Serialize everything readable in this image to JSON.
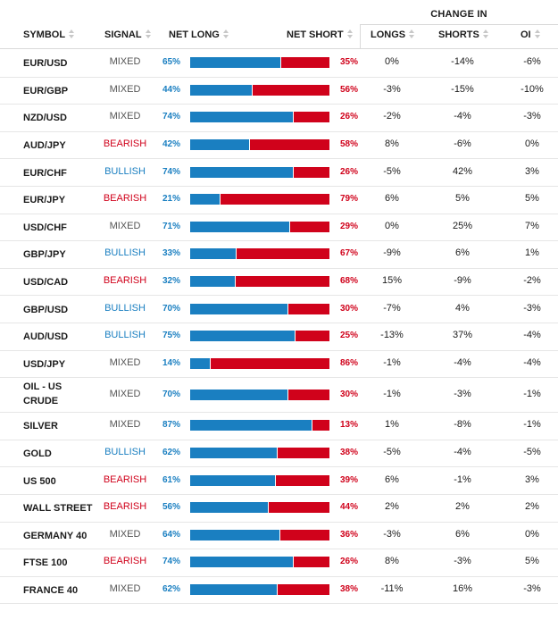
{
  "headers": {
    "change_in": "CHANGE IN",
    "symbol": "SYMBOL",
    "signal": "SIGNAL",
    "net_long": "NET LONG",
    "net_short": "NET SHORT",
    "longs": "LONGS",
    "shorts": "SHORTS",
    "oi": "OI"
  },
  "colors": {
    "long": "#1a7fc1",
    "short": "#d0021b",
    "mixed": "#555555"
  },
  "rows": [
    {
      "symbol": "EUR/USD",
      "signal": "MIXED",
      "long": "65%",
      "short": "35%",
      "longs": "0%",
      "shorts": "-14%",
      "oi": "-6%"
    },
    {
      "symbol": "EUR/GBP",
      "signal": "MIXED",
      "long": "44%",
      "short": "56%",
      "longs": "-3%",
      "shorts": "-15%",
      "oi": "-10%"
    },
    {
      "symbol": "NZD/USD",
      "signal": "MIXED",
      "long": "74%",
      "short": "26%",
      "longs": "-2%",
      "shorts": "-4%",
      "oi": "-3%"
    },
    {
      "symbol": "AUD/JPY",
      "signal": "BEARISH",
      "long": "42%",
      "short": "58%",
      "longs": "8%",
      "shorts": "-6%",
      "oi": "0%"
    },
    {
      "symbol": "EUR/CHF",
      "signal": "BULLISH",
      "long": "74%",
      "short": "26%",
      "longs": "-5%",
      "shorts": "42%",
      "oi": "3%"
    },
    {
      "symbol": "EUR/JPY",
      "signal": "BEARISH",
      "long": "21%",
      "short": "79%",
      "longs": "6%",
      "shorts": "5%",
      "oi": "5%"
    },
    {
      "symbol": "USD/CHF",
      "signal": "MIXED",
      "long": "71%",
      "short": "29%",
      "longs": "0%",
      "shorts": "25%",
      "oi": "7%"
    },
    {
      "symbol": "GBP/JPY",
      "signal": "BULLISH",
      "long": "33%",
      "short": "67%",
      "longs": "-9%",
      "shorts": "6%",
      "oi": "1%"
    },
    {
      "symbol": "USD/CAD",
      "signal": "BEARISH",
      "long": "32%",
      "short": "68%",
      "longs": "15%",
      "shorts": "-9%",
      "oi": "-2%"
    },
    {
      "symbol": "GBP/USD",
      "signal": "BULLISH",
      "long": "70%",
      "short": "30%",
      "longs": "-7%",
      "shorts": "4%",
      "oi": "-3%"
    },
    {
      "symbol": "AUD/USD",
      "signal": "BULLISH",
      "long": "75%",
      "short": "25%",
      "longs": "-13%",
      "shorts": "37%",
      "oi": "-4%"
    },
    {
      "symbol": "USD/JPY",
      "signal": "MIXED",
      "long": "14%",
      "short": "86%",
      "longs": "-1%",
      "shorts": "-4%",
      "oi": "-4%"
    },
    {
      "symbol": "OIL - US CRUDE",
      "signal": "MIXED",
      "long": "70%",
      "short": "30%",
      "longs": "-1%",
      "shorts": "-3%",
      "oi": "-1%"
    },
    {
      "symbol": "SILVER",
      "signal": "MIXED",
      "long": "87%",
      "short": "13%",
      "longs": "1%",
      "shorts": "-8%",
      "oi": "-1%"
    },
    {
      "symbol": "GOLD",
      "signal": "BULLISH",
      "long": "62%",
      "short": "38%",
      "longs": "-5%",
      "shorts": "-4%",
      "oi": "-5%"
    },
    {
      "symbol": "US 500",
      "signal": "BEARISH",
      "long": "61%",
      "short": "39%",
      "longs": "6%",
      "shorts": "-1%",
      "oi": "3%"
    },
    {
      "symbol": "WALL STREET",
      "signal": "BEARISH",
      "long": "56%",
      "short": "44%",
      "longs": "2%",
      "shorts": "2%",
      "oi": "2%"
    },
    {
      "symbol": "GERMANY 40",
      "signal": "MIXED",
      "long": "64%",
      "short": "36%",
      "longs": "-3%",
      "shorts": "6%",
      "oi": "0%"
    },
    {
      "symbol": "FTSE 100",
      "signal": "BEARISH",
      "long": "74%",
      "short": "26%",
      "longs": "8%",
      "shorts": "-3%",
      "oi": "5%"
    },
    {
      "symbol": "FRANCE 40",
      "signal": "MIXED",
      "long": "62%",
      "short": "38%",
      "longs": "-11%",
      "shorts": "16%",
      "oi": "-3%"
    }
  ]
}
